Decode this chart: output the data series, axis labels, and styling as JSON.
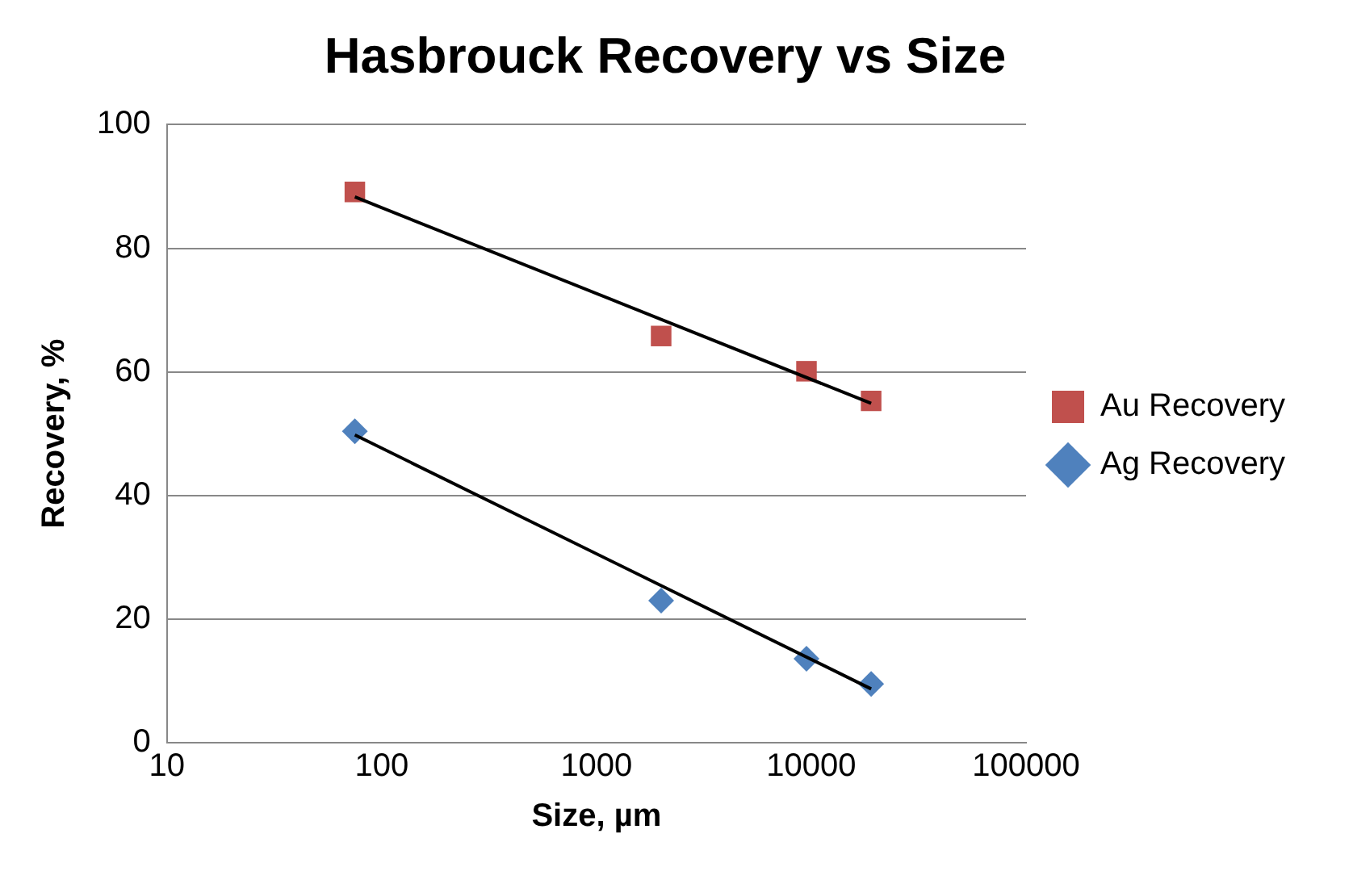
{
  "chart_data": {
    "type": "scatter",
    "title": "Hasbrouck Recovery vs Size",
    "xlabel": "Size, µm",
    "ylabel": "Recovery, %",
    "log": "x",
    "xlim": [
      10,
      100000
    ],
    "xticks": [
      10,
      100,
      1000,
      10000,
      100000
    ],
    "ylim": [
      0,
      100
    ],
    "yticks": [
      0,
      20,
      40,
      60,
      80,
      100
    ],
    "grid": "y",
    "legend": "right",
    "series": [
      {
        "name": "Au Recovery",
        "marker": "square",
        "color": "#c0504d",
        "x": [
          75,
          2000,
          9500,
          19000
        ],
        "values": [
          89.1,
          65.8,
          60.1,
          55.3
        ]
      },
      {
        "name": "Ag Recovery",
        "marker": "diamond",
        "color": "#4f81bd",
        "x": [
          75,
          2000,
          9500,
          19000
        ],
        "values": [
          50.4,
          23.0,
          13.6,
          9.5
        ]
      },
      {
        "type": "line",
        "marker": "none",
        "color": "#000000",
        "x": [
          75,
          19000
        ],
        "values": [
          88.3,
          54.9
        ]
      },
      {
        "type": "line",
        "marker": "none",
        "color": "#000000",
        "x": [
          75,
          19000
        ],
        "values": [
          49.8,
          8.7
        ]
      }
    ]
  }
}
